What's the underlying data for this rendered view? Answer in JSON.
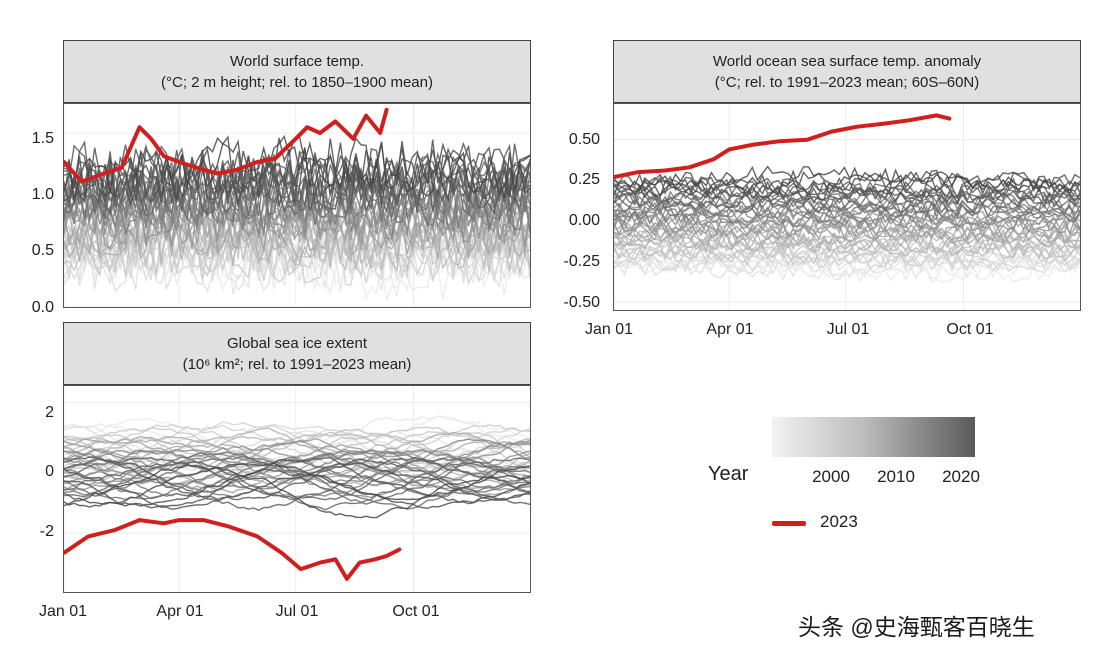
{
  "panels": [
    {
      "title_line1": "World surface temp.",
      "title_line2": "(°C; 2 m height; rel. to 1850–1900 mean)",
      "yticks": [
        "1.5",
        "1.0",
        "0.5",
        "0.0"
      ],
      "xticks": []
    },
    {
      "title_line1": "World ocean sea surface temp. anomaly",
      "title_line2": "(°C; rel. to 1991–2023 mean; 60S–60N)",
      "yticks": [
        "0.50",
        "0.25",
        "0.00",
        "-0.25",
        "-0.50"
      ],
      "xticks": [
        "Jan 01",
        "Apr 01",
        "Jul 01",
        "Oct 01"
      ]
    },
    {
      "title_line1": "Global sea ice extent",
      "title_line2": "(10⁶ km²; rel. to 1991–2023 mean)",
      "yticks": [
        "2",
        "0",
        "-2"
      ],
      "xticks": [
        "Jan 01",
        "Apr 01",
        "Jul 01",
        "Oct 01"
      ]
    }
  ],
  "legend": {
    "title": "Year",
    "scale_labels": [
      "2000",
      "2010",
      "2020"
    ],
    "highlight_label": "2023",
    "gradient_colors": [
      "#f2f2f2",
      "#5a5a5a"
    ],
    "highlight_color": "#d11f1f"
  },
  "watermark": "头条 @史海甄客百晓生",
  "chart_data": [
    {
      "type": "line",
      "title": "World surface temp.",
      "subtitle": "(°C; 2 m height; rel. to 1850–1900 mean)",
      "ylim": [
        0.0,
        1.75
      ],
      "x_axis": "day of year (Jan 01 – Dec 31)",
      "historical_years": "1979–2022 (grey, lighter = earlier)",
      "series": [
        {
          "name": "2023",
          "color": "#d11f1f",
          "x": [
            "Jan 01",
            "Jan 15",
            "Feb 01",
            "Feb 15",
            "Mar 01",
            "Mar 10",
            "Mar 20",
            "Apr 01",
            "Apr 15",
            "May 01",
            "May 15",
            "Jun 01",
            "Jun 15",
            "Jul 01",
            "Jul 10",
            "Jul 20",
            "Aug 01",
            "Aug 15",
            "Aug 25",
            "Sep 05",
            "Sep 10"
          ],
          "values": [
            1.25,
            1.08,
            1.15,
            1.2,
            1.55,
            1.45,
            1.3,
            1.25,
            1.2,
            1.15,
            1.18,
            1.25,
            1.28,
            1.45,
            1.55,
            1.5,
            1.6,
            1.45,
            1.65,
            1.5,
            1.7
          ]
        }
      ]
    },
    {
      "type": "line",
      "title": "World ocean sea surface temp. anomaly",
      "subtitle": "(°C; rel. to 1991–2023 mean; 60S–60N)",
      "ylim": [
        -0.55,
        0.72
      ],
      "xticks": [
        "Jan 01",
        "Apr 01",
        "Jul 01",
        "Oct 01"
      ],
      "series": [
        {
          "name": "2023",
          "color": "#d11f1f",
          "x": [
            "Jan 01",
            "Jan 20",
            "Feb 10",
            "Mar 01",
            "Mar 20",
            "Apr 01",
            "Apr 20",
            "May 10",
            "Jun 01",
            "Jun 20",
            "Jul 10",
            "Aug 01",
            "Aug 20",
            "Sep 10",
            "Sep 20"
          ],
          "values": [
            0.27,
            0.3,
            0.31,
            0.33,
            0.38,
            0.44,
            0.47,
            0.49,
            0.5,
            0.55,
            0.58,
            0.6,
            0.62,
            0.65,
            0.63
          ]
        }
      ]
    },
    {
      "type": "line",
      "title": "Global sea ice extent",
      "subtitle": "(10⁶ km²; rel. to 1991–2023 mean)",
      "ylim": [
        -3.8,
        2.5
      ],
      "xticks": [
        "Jan 01",
        "Apr 01",
        "Jul 01",
        "Oct 01"
      ],
      "series": [
        {
          "name": "2023",
          "color": "#d11f1f",
          "x": [
            "Jan 01",
            "Jan 20",
            "Feb 10",
            "Mar 01",
            "Mar 20",
            "Apr 01",
            "Apr 20",
            "May 10",
            "Jun 01",
            "Jun 20",
            "Jul 05",
            "Jul 20",
            "Aug 01",
            "Aug 10",
            "Aug 20",
            "Sep 01",
            "Sep 10",
            "Sep 20"
          ],
          "values": [
            -2.6,
            -2.1,
            -1.9,
            -1.6,
            -1.7,
            -1.6,
            -1.6,
            -1.8,
            -2.1,
            -2.6,
            -3.1,
            -2.9,
            -2.8,
            -3.4,
            -2.9,
            -2.8,
            -2.7,
            -2.5
          ]
        }
      ]
    }
  ]
}
